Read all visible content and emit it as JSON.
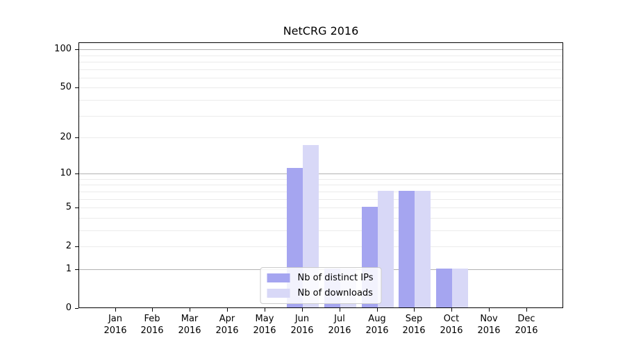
{
  "chart_data": {
    "type": "bar",
    "title": "NetCRG 2016",
    "categories": [
      "Jan",
      "Feb",
      "Mar",
      "Apr",
      "May",
      "Jun",
      "Jul",
      "Aug",
      "Sep",
      "Oct",
      "Nov",
      "Dec"
    ],
    "category_year": "2016",
    "series": [
      {
        "name": "Nb of distinct IPs",
        "color": "#a5a5f0",
        "values": [
          0,
          0,
          0,
          0,
          0,
          11,
          1,
          5,
          7,
          1,
          0,
          0
        ]
      },
      {
        "name": "Nb of downloads",
        "color": "#d8d8f7",
        "values": [
          0,
          0,
          0,
          0,
          0,
          17,
          1,
          7,
          7,
          1,
          0,
          0
        ]
      }
    ],
    "ylabel": "",
    "xlabel": "",
    "yticks": [
      0,
      1,
      2,
      5,
      10,
      20,
      50,
      100
    ],
    "minor_gridlines": [
      2,
      3,
      4,
      5,
      6,
      7,
      8,
      9,
      20,
      30,
      40,
      50,
      60,
      70,
      80,
      90
    ],
    "major_gridlines": [
      1,
      10,
      100
    ],
    "yscale": "log10(1+y)",
    "ylim": [
      0,
      113
    ],
    "grid": true,
    "legend_position": "lower center",
    "colors": {
      "axis": "#000000",
      "major_grid": "#b2b2b2",
      "minor_grid": "#ebebeb",
      "background": "#ffffff"
    }
  }
}
